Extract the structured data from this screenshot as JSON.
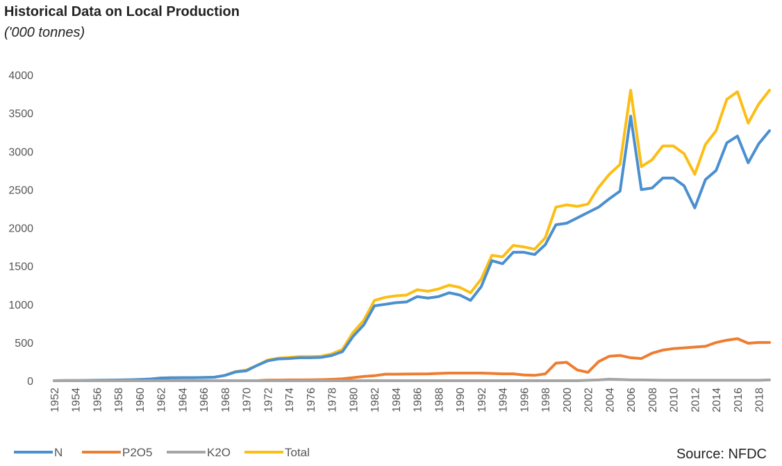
{
  "title": "Historical Data on Local Production",
  "subtitle": "('000 tonnes)",
  "source": "Source: NFDC",
  "chart_data": {
    "type": "line",
    "title": "Historical Data on Local Production",
    "subtitle": "('000 tonnes)",
    "xlabel": "",
    "ylabel": "",
    "ylim": [
      0,
      4000
    ],
    "yticks": [
      0,
      500,
      1000,
      1500,
      2000,
      2500,
      3000,
      3500,
      4000
    ],
    "x": [
      1952,
      1953,
      1954,
      1955,
      1956,
      1957,
      1958,
      1959,
      1960,
      1961,
      1962,
      1963,
      1964,
      1965,
      1966,
      1967,
      1968,
      1969,
      1970,
      1971,
      1972,
      1973,
      1974,
      1975,
      1976,
      1977,
      1978,
      1979,
      1980,
      1981,
      1982,
      1983,
      1984,
      1985,
      1986,
      1987,
      1988,
      1989,
      1990,
      1991,
      1992,
      1993,
      1994,
      1995,
      1996,
      1997,
      1998,
      1999,
      2000,
      2001,
      2002,
      2003,
      2004,
      2005,
      2006,
      2007,
      2008,
      2009,
      2010,
      2011,
      2012,
      2013,
      2014,
      2015,
      2016,
      2017,
      2018,
      2019
    ],
    "xtick_labels": [
      "1952",
      "1954",
      "1956",
      "1958",
      "1960",
      "1962",
      "1964",
      "1966",
      "1968",
      "1970",
      "1972",
      "1974",
      "1976",
      "1978",
      "1980",
      "1982",
      "1984",
      "1986",
      "1988",
      "1990",
      "1992",
      "1994",
      "1996",
      "1998",
      "2000",
      "2002",
      "2004",
      "2006",
      "2008",
      "2010",
      "2012",
      "2014",
      "2016",
      "2018"
    ],
    "grid": false,
    "legend_position": "bottom-left",
    "series": [
      {
        "name": "N",
        "color": "#4a8fcf",
        "values": [
          0,
          2,
          3,
          4,
          5,
          7,
          9,
          11,
          15,
          22,
          35,
          38,
          40,
          40,
          42,
          45,
          70,
          115,
          130,
          200,
          260,
          285,
          290,
          300,
          300,
          305,
          330,
          380,
          580,
          730,
          980,
          1000,
          1020,
          1030,
          1100,
          1080,
          1100,
          1150,
          1120,
          1050,
          1230,
          1570,
          1530,
          1680,
          1680,
          1650,
          1780,
          2040,
          2060,
          2130,
          2200,
          2270,
          2380,
          2480,
          3460,
          2500,
          2520,
          2650,
          2650,
          2550,
          2260,
          2630,
          2750,
          3110,
          3200,
          2850,
          3100,
          3270
        ]
      },
      {
        "name": "P2O5",
        "color": "#ed7d31",
        "values": [
          0,
          0,
          0,
          0,
          0,
          0,
          0,
          0,
          0,
          0,
          0,
          0,
          0,
          0,
          0,
          0,
          0,
          0,
          0,
          0,
          8,
          8,
          10,
          10,
          12,
          14,
          18,
          25,
          40,
          55,
          65,
          85,
          85,
          87,
          88,
          90,
          95,
          100,
          100,
          100,
          100,
          95,
          90,
          90,
          75,
          70,
          90,
          230,
          240,
          140,
          110,
          250,
          320,
          330,
          300,
          290,
          360,
          400,
          420,
          430,
          440,
          450,
          500,
          530,
          550,
          490,
          500,
          500
        ]
      },
      {
        "name": "K2O",
        "color": "#a5a5a5",
        "values": [
          0,
          0,
          0,
          0,
          0,
          0,
          0,
          0,
          0,
          0,
          0,
          0,
          0,
          0,
          0,
          0,
          0,
          0,
          0,
          0,
          0,
          0,
          0,
          0,
          0,
          0,
          0,
          0,
          0,
          0,
          0,
          0,
          0,
          0,
          0,
          0,
          0,
          0,
          0,
          0,
          0,
          0,
          0,
          0,
          0,
          0,
          0,
          0,
          0,
          0,
          5,
          10,
          20,
          15,
          10,
          10,
          8,
          5,
          5,
          5,
          5,
          5,
          5,
          5,
          5,
          5,
          5,
          10
        ]
      },
      {
        "name": "Total",
        "color": "#fcbe14",
        "values": [
          0,
          2,
          3,
          4,
          5,
          7,
          9,
          11,
          15,
          22,
          35,
          38,
          40,
          40,
          42,
          45,
          70,
          120,
          140,
          200,
          270,
          295,
          305,
          315,
          315,
          320,
          350,
          410,
          630,
          790,
          1050,
          1090,
          1110,
          1120,
          1190,
          1170,
          1200,
          1250,
          1220,
          1150,
          1330,
          1640,
          1620,
          1770,
          1750,
          1720,
          1870,
          2270,
          2300,
          2280,
          2310,
          2530,
          2700,
          2830,
          3800,
          2800,
          2890,
          3070,
          3070,
          2970,
          2700,
          3090,
          3270,
          3680,
          3780,
          3370,
          3620,
          3800
        ]
      }
    ]
  }
}
